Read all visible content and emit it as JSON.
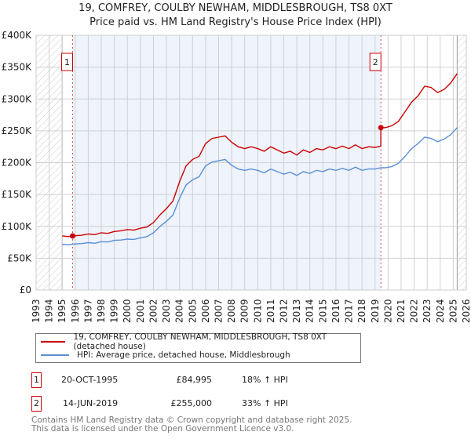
{
  "title_line1": "19, COMFREY, COULBY NEWHAM, MIDDLESBROUGH, TS8 0XT",
  "title_line2": "Price paid vs. HM Land Registry's House Price Index (HPI)",
  "colors": {
    "property": "#cc0000",
    "hpi": "#5b8fd6",
    "shade": "#eef3fc",
    "marker_box": "#cc0000"
  },
  "chart_data": {
    "type": "line",
    "xlim": [
      1993,
      2026
    ],
    "ylim": [
      0,
      400000
    ],
    "y_ticks": [
      0,
      50000,
      100000,
      150000,
      200000,
      250000,
      300000,
      350000,
      400000
    ],
    "y_tick_labels": [
      "£0",
      "£50K",
      "£100K",
      "£150K",
      "£200K",
      "£250K",
      "£300K",
      "£350K",
      "£400K"
    ],
    "x_ticks": [
      "1993",
      "1994",
      "1995",
      "1996",
      "1997",
      "1998",
      "1999",
      "2000",
      "2001",
      "2002",
      "2003",
      "2004",
      "2005",
      "2006",
      "2007",
      "2008",
      "2009",
      "2010",
      "2011",
      "2012",
      "2013",
      "2014",
      "2015",
      "2016",
      "2017",
      "2018",
      "2019",
      "2020",
      "2021",
      "2022",
      "2023",
      "2024",
      "2025",
      "2026"
    ],
    "hatched_before": 1995.0,
    "hatched_after": 2025.3,
    "series": [
      {
        "name": "19, COMFREY, COULBY NEWHAM, MIDDLESBROUGH, TS8 0XT (detached house)",
        "x": [
          1995.0,
          1995.5,
          1995.8,
          1996.5,
          1997,
          1997.5,
          1998,
          1998.5,
          1999,
          1999.5,
          2000,
          2000.5,
          2001,
          2001.5,
          2002,
          2002.5,
          2003,
          2003.5,
          2004,
          2004.5,
          2005,
          2005.5,
          2006,
          2006.5,
          2007,
          2007.5,
          2008,
          2008.5,
          2009,
          2009.5,
          2010,
          2010.5,
          2011,
          2011.5,
          2012,
          2012.5,
          2013,
          2013.5,
          2014,
          2014.5,
          2015,
          2015.5,
          2016,
          2016.5,
          2017,
          2017.5,
          2018,
          2018.5,
          2019,
          2019.44,
          2019.45,
          2019.8,
          2020.3,
          2020.8,
          2021.3,
          2021.8,
          2022.3,
          2022.8,
          2023.3,
          2023.8,
          2024.3,
          2024.8,
          2025.3
        ],
        "y": [
          85000,
          84000,
          84995,
          86000,
          88000,
          87000,
          90000,
          89000,
          92000,
          93000,
          95000,
          94000,
          97000,
          99000,
          106000,
          118000,
          128000,
          140000,
          170000,
          195000,
          205000,
          210000,
          230000,
          238000,
          240000,
          242000,
          232000,
          225000,
          222000,
          225000,
          222000,
          218000,
          225000,
          220000,
          215000,
          218000,
          212000,
          220000,
          216000,
          222000,
          220000,
          225000,
          222000,
          226000,
          222000,
          228000,
          222000,
          225000,
          224000,
          226000,
          255000,
          255000,
          258000,
          265000,
          280000,
          295000,
          305000,
          320000,
          318000,
          310000,
          315000,
          325000,
          340000
        ]
      },
      {
        "name": "HPI: Average price, detached house, Middlesbrough",
        "x": [
          1995.0,
          1995.5,
          1995.8,
          1996.5,
          1997,
          1997.5,
          1998,
          1998.5,
          1999,
          1999.5,
          2000,
          2000.5,
          2001,
          2001.5,
          2002,
          2002.5,
          2003,
          2003.5,
          2004,
          2004.5,
          2005,
          2005.5,
          2006,
          2006.5,
          2007,
          2007.5,
          2008,
          2008.5,
          2009,
          2009.5,
          2010,
          2010.5,
          2011,
          2011.5,
          2012,
          2012.5,
          2013,
          2013.5,
          2014,
          2014.5,
          2015,
          2015.5,
          2016,
          2016.5,
          2017,
          2017.5,
          2018,
          2018.5,
          2019,
          2019.45,
          2019.8,
          2020.3,
          2020.8,
          2021.3,
          2021.8,
          2022.3,
          2022.8,
          2023.3,
          2023.8,
          2024.3,
          2024.8,
          2025.3
        ],
        "y": [
          72000,
          71000,
          72000,
          73000,
          74500,
          73500,
          76000,
          75500,
          78000,
          78500,
          80000,
          79500,
          82000,
          84000,
          90000,
          100000,
          108000,
          118000,
          144000,
          165000,
          173000,
          178000,
          195000,
          201000,
          203000,
          205000,
          196000,
          190000,
          188000,
          190000,
          188000,
          184000,
          190000,
          186000,
          182000,
          185000,
          180000,
          186000,
          183000,
          188000,
          186000,
          190000,
          188000,
          191000,
          188000,
          193000,
          188000,
          190000,
          190000,
          192000,
          192000,
          194000,
          199000,
          210000,
          222000,
          230000,
          240000,
          238000,
          233000,
          237000,
          244000,
          255000
        ]
      }
    ],
    "sales": [
      {
        "label": "1",
        "x": 1995.8,
        "y": 84995
      },
      {
        "label": "2",
        "x": 2019.45,
        "y": 255000
      }
    ]
  },
  "legend": {
    "property": "19, COMFREY, COULBY NEWHAM, MIDDLESBROUGH, TS8 0XT (detached house)",
    "hpi": "HPI: Average price, detached house, Middlesbrough"
  },
  "transactions": [
    {
      "num": "1",
      "date": "20-OCT-1995",
      "price": "£84,995",
      "hpi": "18% ↑ HPI"
    },
    {
      "num": "2",
      "date": "14-JUN-2019",
      "price": "£255,000",
      "hpi": "33% ↑ HPI"
    }
  ],
  "footer_line1": "Contains HM Land Registry data © Crown copyright and database right 2025.",
  "footer_line2": "This data is licensed under the Open Government Licence v3.0."
}
